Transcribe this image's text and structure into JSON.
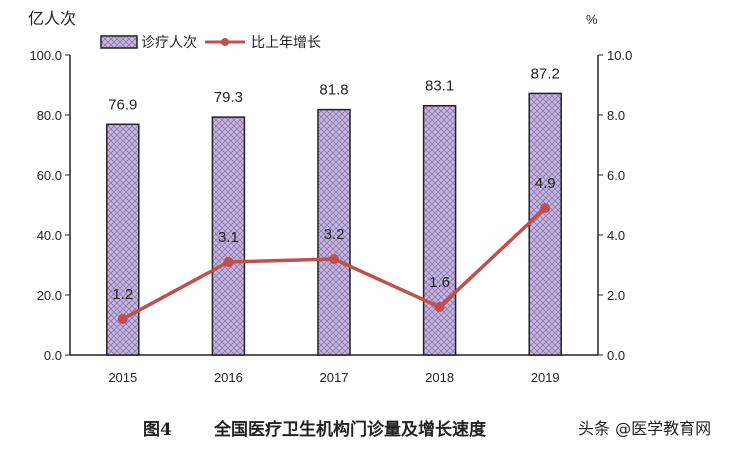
{
  "chart_data": {
    "type": "bar+line",
    "categories": [
      "2015",
      "2016",
      "2017",
      "2018",
      "2019"
    ],
    "series": [
      {
        "name": "诊疗人次",
        "type": "bar",
        "axis": "left",
        "values": [
          76.9,
          79.3,
          81.8,
          83.1,
          87.2
        ],
        "labels": [
          "76.9",
          "79.3",
          "81.8",
          "83.1",
          "87.2"
        ],
        "color": "#b9a6d6"
      },
      {
        "name": "比上年增长",
        "type": "line",
        "axis": "right",
        "values": [
          1.2,
          3.1,
          3.2,
          1.6,
          4.9
        ],
        "labels": [
          "1.2",
          "3.1",
          "3.2",
          "1.6",
          "4.9"
        ],
        "color": "#c0504d"
      }
    ],
    "ylabel": "亿人次",
    "y2label": "%",
    "ylim": [
      0,
      100
    ],
    "y2lim": [
      0,
      10
    ],
    "yticks": [
      "0.0",
      "20.0",
      "40.0",
      "60.0",
      "80.0",
      "100.0"
    ],
    "y2ticks": [
      "0.0",
      "2.0",
      "4.0",
      "6.0",
      "8.0",
      "10.0"
    ],
    "grid": false,
    "legend": "top-left",
    "caption_num": "图4",
    "caption": "全国医疗卫生机构门诊量及增长速度"
  },
  "watermark": "头条 @医学教育网"
}
